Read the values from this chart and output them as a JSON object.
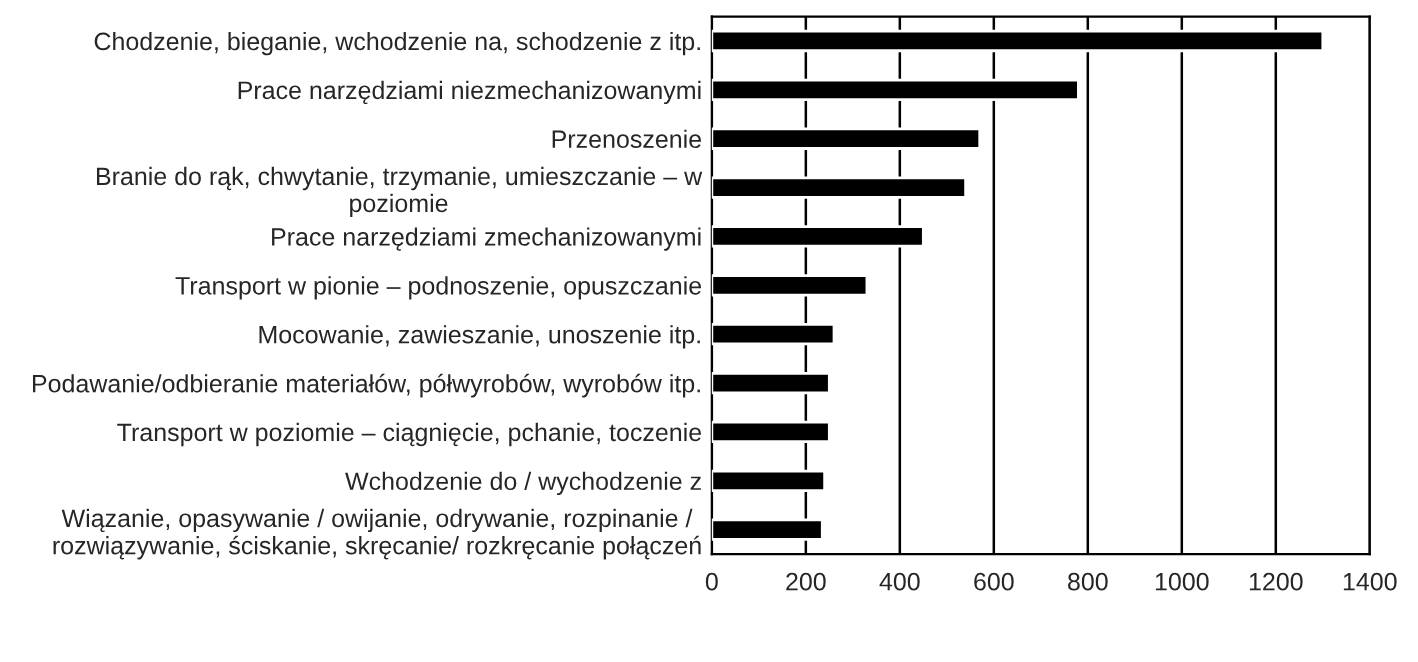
{
  "chart_data": {
    "type": "bar",
    "orientation": "horizontal",
    "categories": [
      "Chodzenie, bieganie, wchodzenie na, schodzenie z itp.",
      "Prace narzędziami niezmechanizowanymi",
      "Przenoszenie",
      "Branie do rąk, chwytanie, trzymanie, umieszczanie – w\npoziomie",
      "Prace narzędziami zmechanizowanymi",
      "Transport w pionie – podnoszenie, opuszczanie",
      "Mocowanie, zawieszanie, unoszenie itp.",
      "Podawanie/odbieranie materiałów, półwyrobów, wyrobów itp.",
      "Transport w poziomie – ciągnięcie, pchanie, toczenie",
      "Wchodzenie do / wychodzenie z",
      "Wiązanie, opasywanie / owijanie, odrywanie, rozpinanie /\nrozwiązywanie, ściskanie, skręcanie/ rozkręcanie połączeń"
    ],
    "values": [
      1300,
      780,
      570,
      540,
      450,
      330,
      260,
      250,
      250,
      240,
      235
    ],
    "color": "#000000",
    "xlim": [
      0,
      1400
    ],
    "xticks": [
      0,
      200,
      400,
      600,
      800,
      1000,
      1200,
      1400
    ],
    "grid": "x",
    "legend": false
  }
}
